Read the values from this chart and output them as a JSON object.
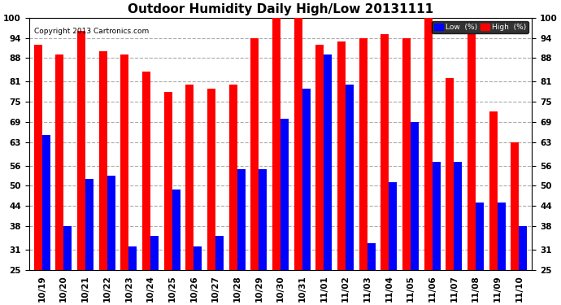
{
  "title": "Outdoor Humidity Daily High/Low 20131111",
  "copyright": "Copyright 2013 Cartronics.com",
  "categories": [
    "10/19",
    "10/20",
    "10/21",
    "10/22",
    "10/23",
    "10/24",
    "10/25",
    "10/26",
    "10/27",
    "10/28",
    "10/29",
    "10/30",
    "10/31",
    "11/01",
    "11/02",
    "11/03",
    "11/04",
    "11/05",
    "11/06",
    "11/07",
    "11/08",
    "11/09",
    "11/10"
  ],
  "high_values": [
    92,
    89,
    96,
    90,
    89,
    84,
    78,
    80,
    79,
    80,
    94,
    100,
    100,
    92,
    93,
    94,
    95,
    94,
    100,
    82,
    95,
    72,
    63
  ],
  "low_values": [
    65,
    38,
    52,
    53,
    32,
    35,
    49,
    32,
    35,
    55,
    55,
    70,
    79,
    89,
    80,
    33,
    51,
    69,
    57,
    57,
    45,
    45,
    38
  ],
  "high_color": "#ff0000",
  "low_color": "#0000ff",
  "bg_color": "#ffffff",
  "grid_color": "#aaaaaa",
  "ylim_min": 25,
  "ylim_max": 100,
  "yticks": [
    25,
    31,
    38,
    44,
    50,
    56,
    63,
    69,
    75,
    81,
    88,
    94,
    100
  ],
  "bar_width": 0.38,
  "title_fontsize": 11,
  "tick_fontsize": 7.5,
  "copyright_fontsize": 6.5,
  "legend_low_label": "Low  (%)",
  "legend_high_label": "High  (%)"
}
